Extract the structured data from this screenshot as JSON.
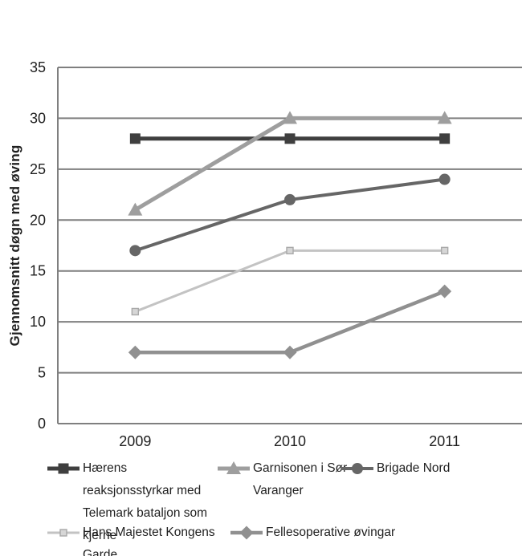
{
  "chart_data": {
    "type": "line",
    "title": "",
    "xlabel": "",
    "ylabel": "Gjennomsnitt døgn med øving",
    "categories": [
      "2009",
      "2010",
      "2011"
    ],
    "ylim": [
      0,
      35
    ],
    "yticks": [
      0,
      5,
      10,
      15,
      20,
      25,
      30,
      35
    ],
    "grid": true,
    "legend_position": "bottom",
    "series": [
      {
        "name": "Hærens reaksjonsstyrkar med Telemark bataljon som kjerne",
        "values": [
          28,
          28,
          28
        ],
        "color": "#3f3f3f",
        "marker": "square",
        "line_width": 5
      },
      {
        "name": "Garnisonen i Sør-Varanger",
        "values": [
          21,
          30,
          30
        ],
        "color": "#9e9e9e",
        "marker": "triangle",
        "line_width": 5
      },
      {
        "name": "Brigade Nord",
        "values": [
          17,
          22,
          24
        ],
        "color": "#666666",
        "marker": "circle",
        "line_width": 4
      },
      {
        "name": "Hans Majestet Kongens Garde",
        "values": [
          11,
          17,
          17
        ],
        "color": "#c3c3c3",
        "marker": "square-small",
        "line_width": 3
      },
      {
        "name": "Fellesoperative øvingar",
        "values": [
          7,
          7,
          13
        ],
        "color": "#909090",
        "marker": "diamond",
        "line_width": 4.5
      }
    ],
    "colors": {
      "grid": "#7f7f7f",
      "axis": "#7f7f7f",
      "text": "#1f1f1f",
      "background": "#ffffff"
    }
  }
}
